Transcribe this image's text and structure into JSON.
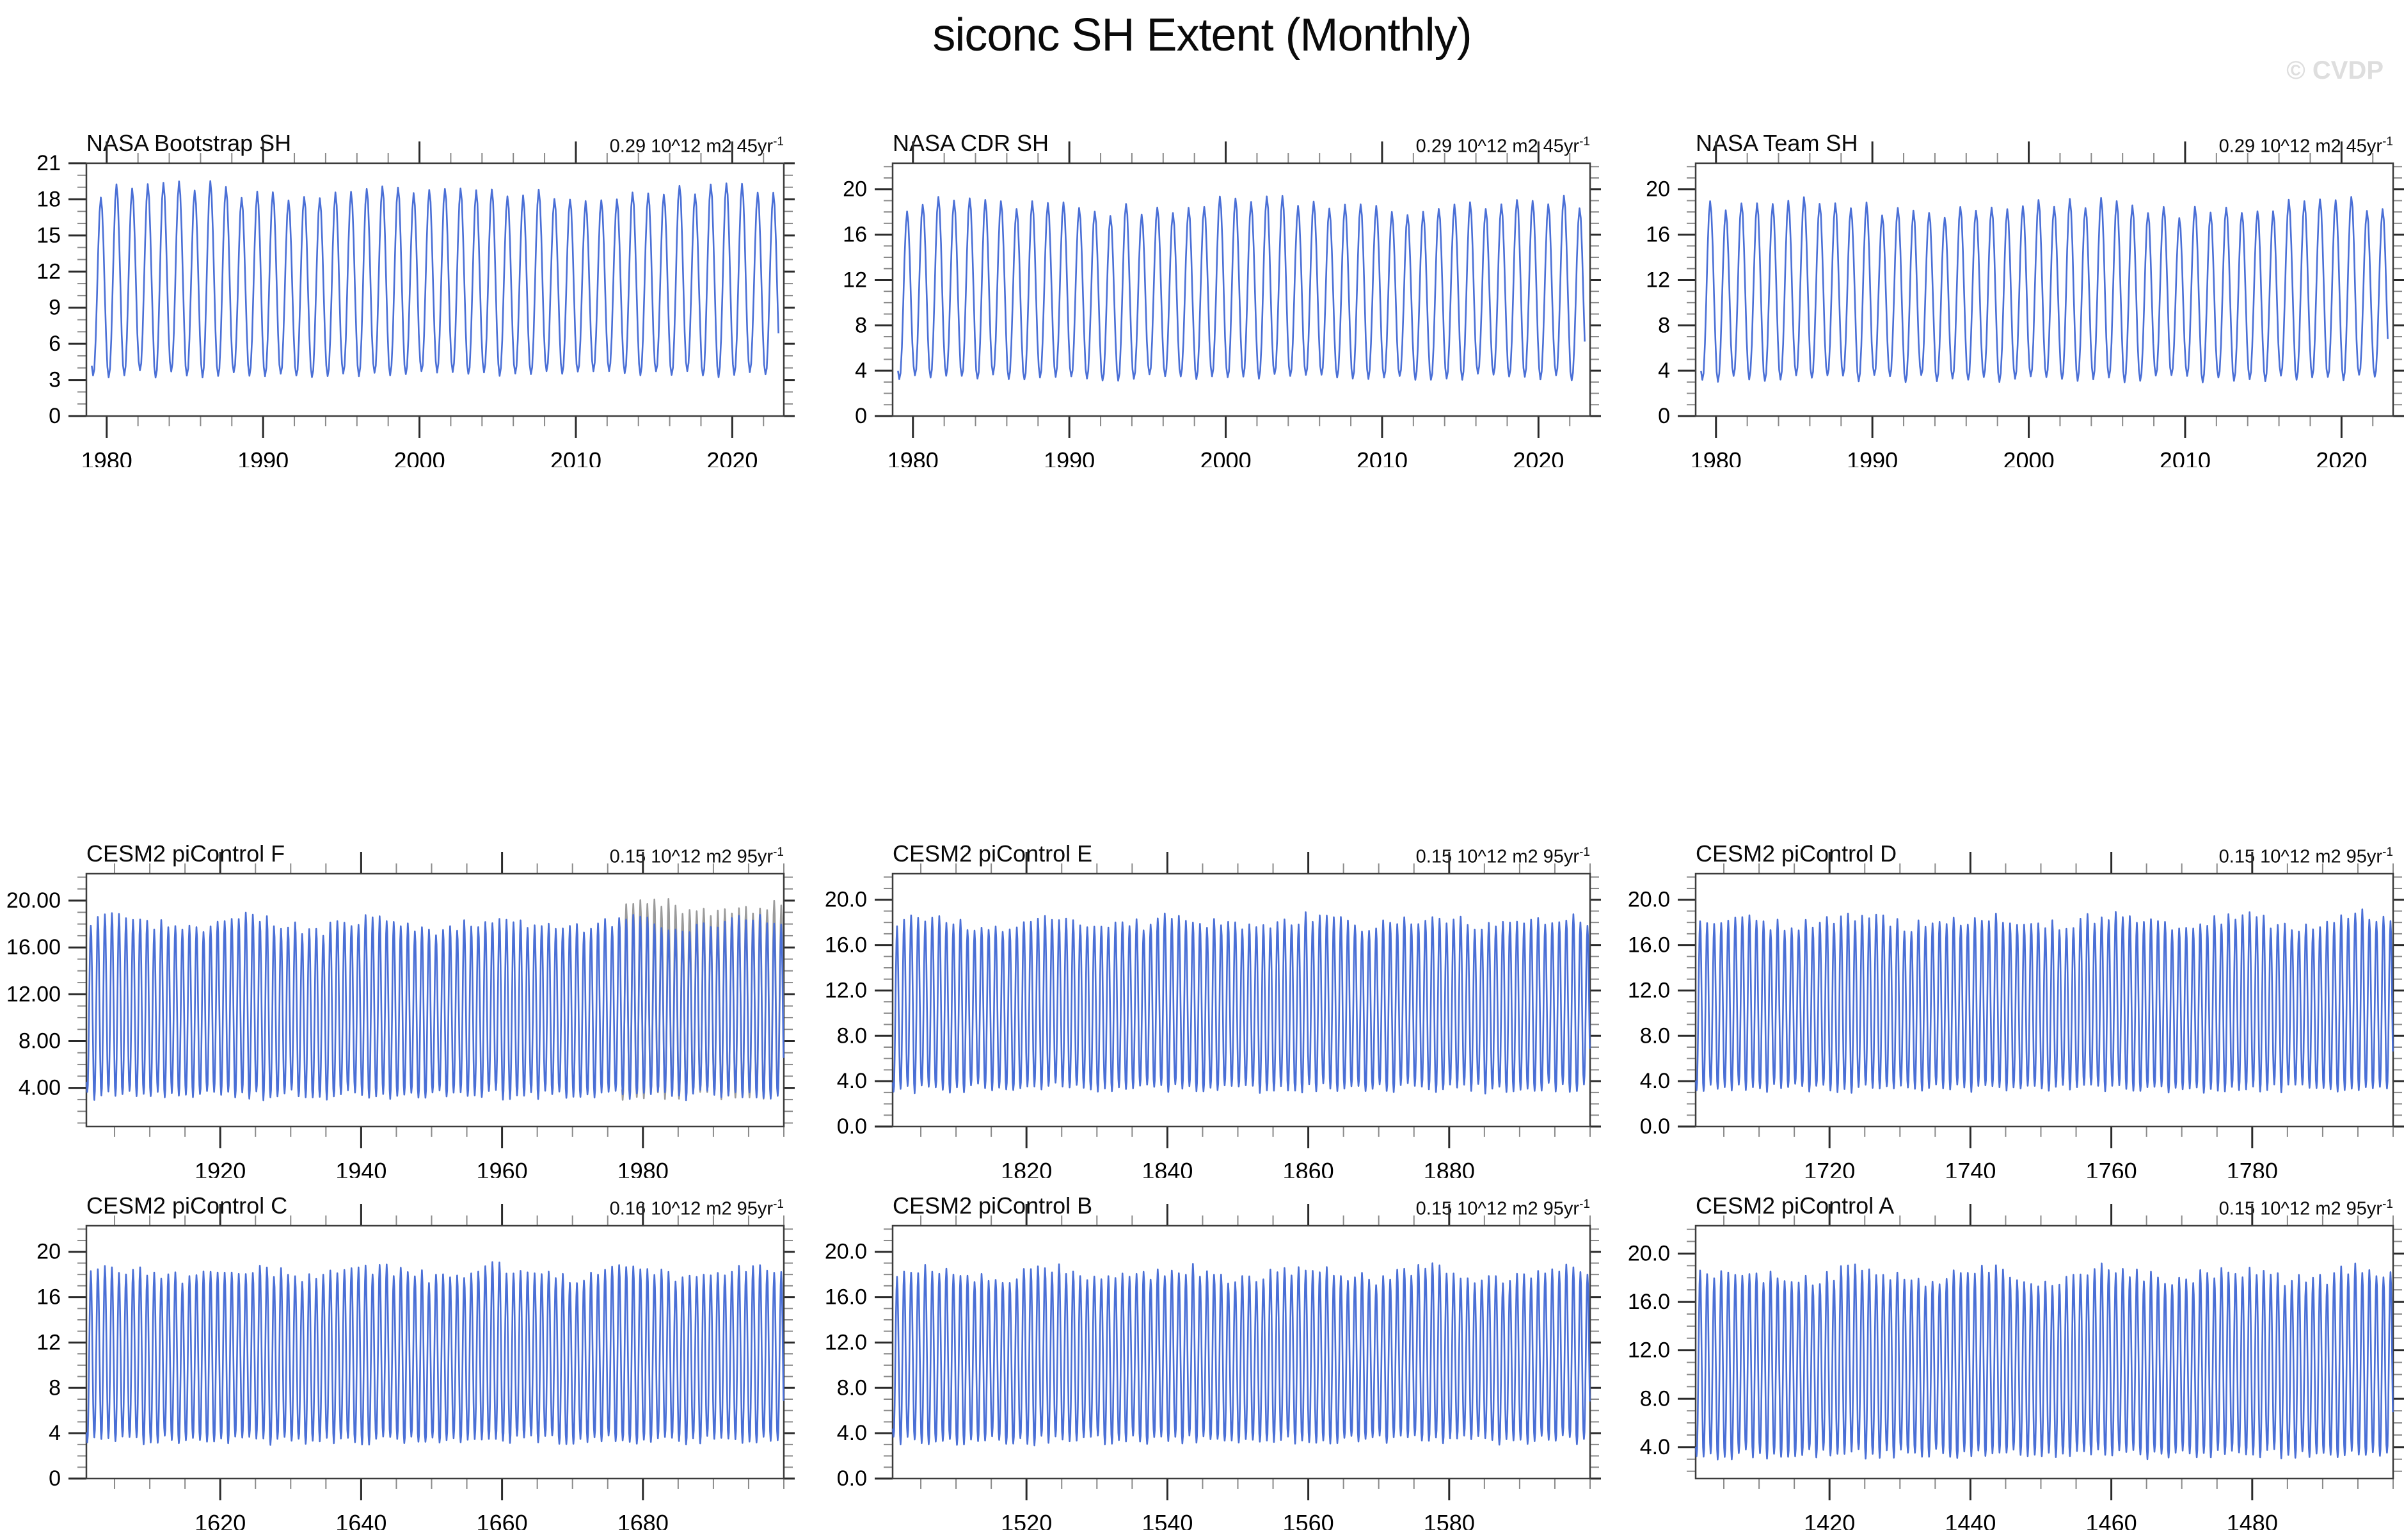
{
  "page": {
    "title": "siconc SH Extent (Monthly)",
    "watermark": "© CVDP"
  },
  "style": {
    "line_color": "#4a6fd6",
    "overlay_color": "#9b9b9b",
    "frame_color": "#3c3c3c",
    "major_tick_color": "#2a2a2a",
    "minor_tick_color": "#8a8a8a",
    "watermark_color": "#dedede",
    "background": "#ffffff"
  },
  "chart_data": [
    {
      "type": "line",
      "title": "NASA Bootstrap SH",
      "trend_text": "0.29 10^12 m2 45yr",
      "trend_sup": "-1",
      "xlim": [
        1978.7,
        2023.3
      ],
      "xticks": [
        1980,
        1990,
        2000,
        2010,
        2020
      ],
      "xtick_labels": [
        "1980",
        "1990",
        "2000",
        "2010",
        "2020"
      ],
      "xminor_step": 2,
      "ylim": [
        0,
        21
      ],
      "ytick_values": [
        0,
        3,
        6,
        9,
        12,
        15,
        18,
        21
      ],
      "ytick_labels": [
        "0",
        "3",
        "6",
        "9",
        "12",
        "15",
        "18",
        "21"
      ],
      "yminor_step": 1,
      "grid": false,
      "legend": false,
      "series": {
        "name": "monthly SH sea ice extent",
        "cadence": "monthly",
        "start_year": 1979,
        "end_year": 2023,
        "seasonal_min": 3.5,
        "seasonal_max": 18.7,
        "peak_jitter": 0.6,
        "trough_jitter": 0.3,
        "units": "10^12 m2"
      }
    },
    {
      "type": "line",
      "title": "NASA CDR SH",
      "trend_text": "0.29 10^12 m2 45yr",
      "trend_sup": "-1",
      "xlim": [
        1978.7,
        2023.3
      ],
      "xticks": [
        1980,
        1990,
        2000,
        2010,
        2020
      ],
      "xtick_labels": [
        "1980",
        "1990",
        "2000",
        "2010",
        "2020"
      ],
      "xminor_step": 2,
      "ylim": [
        0,
        22.3
      ],
      "ytick_values": [
        0,
        4,
        8,
        12,
        16,
        20
      ],
      "ytick_labels": [
        "0",
        "4",
        "8",
        "12",
        "16",
        "20"
      ],
      "yminor_step": 1,
      "grid": false,
      "legend": false,
      "series": {
        "name": "monthly SH sea ice extent",
        "cadence": "monthly",
        "start_year": 1979,
        "end_year": 2023,
        "seasonal_min": 3.4,
        "seasonal_max": 18.6,
        "peak_jitter": 0.6,
        "trough_jitter": 0.3,
        "units": "10^12 m2"
      }
    },
    {
      "type": "line",
      "title": "NASA Team SH",
      "trend_text": "0.29 10^12 m2 45yr",
      "trend_sup": "-1",
      "xlim": [
        1978.7,
        2023.3
      ],
      "xticks": [
        1980,
        1990,
        2000,
        2010,
        2020
      ],
      "xtick_labels": [
        "1980",
        "1990",
        "2000",
        "2010",
        "2020"
      ],
      "xminor_step": 2,
      "ylim": [
        0,
        22.3
      ],
      "ytick_values": [
        0,
        4,
        8,
        12,
        16,
        20
      ],
      "ytick_labels": [
        "0",
        "4",
        "8",
        "12",
        "16",
        "20"
      ],
      "yminor_step": 1,
      "grid": false,
      "legend": false,
      "series": {
        "name": "monthly SH sea ice extent",
        "cadence": "monthly",
        "start_year": 1979,
        "end_year": 2023,
        "seasonal_min": 3.3,
        "seasonal_max": 18.4,
        "peak_jitter": 0.6,
        "trough_jitter": 0.3,
        "units": "10^12 m2"
      }
    },
    {
      "type": "line",
      "title": "CESM2 piControl F",
      "trend_text": "0.15 10^12 m2 95yr",
      "trend_sup": "-1",
      "xlim": [
        1901,
        2000
      ],
      "xticks": [
        1920,
        1940,
        1960,
        1980
      ],
      "xtick_labels": [
        "1920",
        "1940",
        "1960",
        "1980"
      ],
      "xminor_step": 5,
      "ylim": [
        0.7,
        22.3
      ],
      "ytick_values": [
        4,
        8,
        12,
        16,
        20
      ],
      "ytick_labels": [
        "4.00",
        "8.00",
        "12.00",
        "16.00",
        "20.00"
      ],
      "yminor_step": 1,
      "grid": false,
      "legend": false,
      "series": {
        "name": "monthly SH sea ice extent",
        "cadence": "monthly",
        "start_year": 1901,
        "end_year": 2000,
        "seasonal_min": 3.4,
        "seasonal_max": 18.0,
        "peak_jitter": 0.55,
        "trough_jitter": 0.4,
        "units": "10^12 m2"
      },
      "secondary_series": {
        "name": "overlapping observed segment",
        "color": "#9b9b9b",
        "start_year": 1977,
        "end_year": 2000,
        "peak_offset": 1.3
      }
    },
    {
      "type": "line",
      "title": "CESM2 piControl E",
      "trend_text": "0.15 10^12 m2 95yr",
      "trend_sup": "-1",
      "xlim": [
        1801,
        1900
      ],
      "xticks": [
        1820,
        1840,
        1860,
        1880
      ],
      "xtick_labels": [
        "1820",
        "1840",
        "1860",
        "1880"
      ],
      "xminor_step": 5,
      "ylim": [
        0,
        22.3
      ],
      "ytick_values": [
        0,
        4,
        8,
        12,
        16,
        20
      ],
      "ytick_labels": [
        "0.0",
        "4.0",
        "8.0",
        "12.0",
        "16.0",
        "20.0"
      ],
      "yminor_step": 1,
      "grid": false,
      "legend": false,
      "series": {
        "name": "monthly SH sea ice extent",
        "cadence": "monthly",
        "start_year": 1801,
        "end_year": 1900,
        "seasonal_min": 3.4,
        "seasonal_max": 18.0,
        "peak_jitter": 0.55,
        "trough_jitter": 0.4,
        "units": "10^12 m2"
      }
    },
    {
      "type": "line",
      "title": "CESM2 piControl D",
      "trend_text": "0.15 10^12 m2 95yr",
      "trend_sup": "-1",
      "xlim": [
        1701,
        1800
      ],
      "xticks": [
        1720,
        1740,
        1760,
        1780
      ],
      "xtick_labels": [
        "1720",
        "1740",
        "1760",
        "1780"
      ],
      "xminor_step": 5,
      "ylim": [
        0,
        22.3
      ],
      "ytick_values": [
        0,
        4,
        8,
        12,
        16,
        20
      ],
      "ytick_labels": [
        "0.0",
        "4.0",
        "8.0",
        "12.0",
        "16.0",
        "20.0"
      ],
      "yminor_step": 1,
      "grid": false,
      "legend": false,
      "series": {
        "name": "monthly SH sea ice extent",
        "cadence": "monthly",
        "start_year": 1701,
        "end_year": 1800,
        "seasonal_min": 3.4,
        "seasonal_max": 18.1,
        "peak_jitter": 0.55,
        "trough_jitter": 0.4,
        "units": "10^12 m2"
      }
    },
    {
      "type": "line",
      "title": "CESM2 piControl C",
      "trend_text": "0.16 10^12 m2 95yr",
      "trend_sup": "-1",
      "xlim": [
        1601,
        1700
      ],
      "xticks": [
        1620,
        1640,
        1660,
        1680
      ],
      "xtick_labels": [
        "1620",
        "1640",
        "1660",
        "1680"
      ],
      "xminor_step": 5,
      "ylim": [
        0,
        22.3
      ],
      "ytick_values": [
        0,
        4,
        8,
        12,
        16,
        20
      ],
      "ytick_labels": [
        "0",
        "4",
        "8",
        "12",
        "16",
        "20"
      ],
      "yminor_step": 1,
      "grid": false,
      "legend": false,
      "series": {
        "name": "monthly SH sea ice extent",
        "cadence": "monthly",
        "start_year": 1601,
        "end_year": 1700,
        "seasonal_min": 3.4,
        "seasonal_max": 18.1,
        "peak_jitter": 0.55,
        "trough_jitter": 0.4,
        "units": "10^12 m2"
      }
    },
    {
      "type": "line",
      "title": "CESM2 piControl B",
      "trend_text": "0.15 10^12 m2 95yr",
      "trend_sup": "-1",
      "xlim": [
        1501,
        1600
      ],
      "xticks": [
        1520,
        1540,
        1560,
        1580
      ],
      "xtick_labels": [
        "1520",
        "1540",
        "1560",
        "1580"
      ],
      "xminor_step": 5,
      "ylim": [
        0,
        22.3
      ],
      "ytick_values": [
        0,
        4,
        8,
        12,
        16,
        20
      ],
      "ytick_labels": [
        "0.0",
        "4.0",
        "8.0",
        "12.0",
        "16.0",
        "20.0"
      ],
      "yminor_step": 1,
      "grid": false,
      "legend": false,
      "series": {
        "name": "monthly SH sea ice extent",
        "cadence": "monthly",
        "start_year": 1501,
        "end_year": 1600,
        "seasonal_min": 3.4,
        "seasonal_max": 18.0,
        "peak_jitter": 0.55,
        "trough_jitter": 0.4,
        "units": "10^12 m2"
      }
    },
    {
      "type": "line",
      "title": "CESM2 piControl A",
      "trend_text": "0.15 10^12 m2 95yr",
      "trend_sup": "-1",
      "xlim": [
        1401,
        1500
      ],
      "xticks": [
        1420,
        1440,
        1460,
        1480
      ],
      "xtick_labels": [
        "1420",
        "1440",
        "1460",
        "1480"
      ],
      "xminor_step": 5,
      "ylim": [
        1.4,
        22.3
      ],
      "ytick_values": [
        4,
        8,
        12,
        16,
        20
      ],
      "ytick_labels": [
        "4.0",
        "8.0",
        "12.0",
        "16.0",
        "20.0"
      ],
      "yminor_step": 1,
      "grid": false,
      "legend": false,
      "series": {
        "name": "monthly SH sea ice extent",
        "cadence": "monthly",
        "start_year": 1401,
        "end_year": 1500,
        "seasonal_min": 3.4,
        "seasonal_max": 18.2,
        "peak_jitter": 0.55,
        "trough_jitter": 0.4,
        "units": "10^12 m2"
      }
    }
  ]
}
